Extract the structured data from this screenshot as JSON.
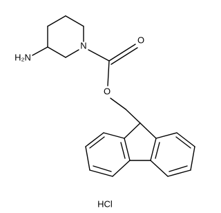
{
  "atoms": {
    "amine": "H₂N",
    "nitrogen": "N",
    "carbonyl_oxygen": "O",
    "ester_oxygen": "O"
  },
  "salt": "HCl"
}
